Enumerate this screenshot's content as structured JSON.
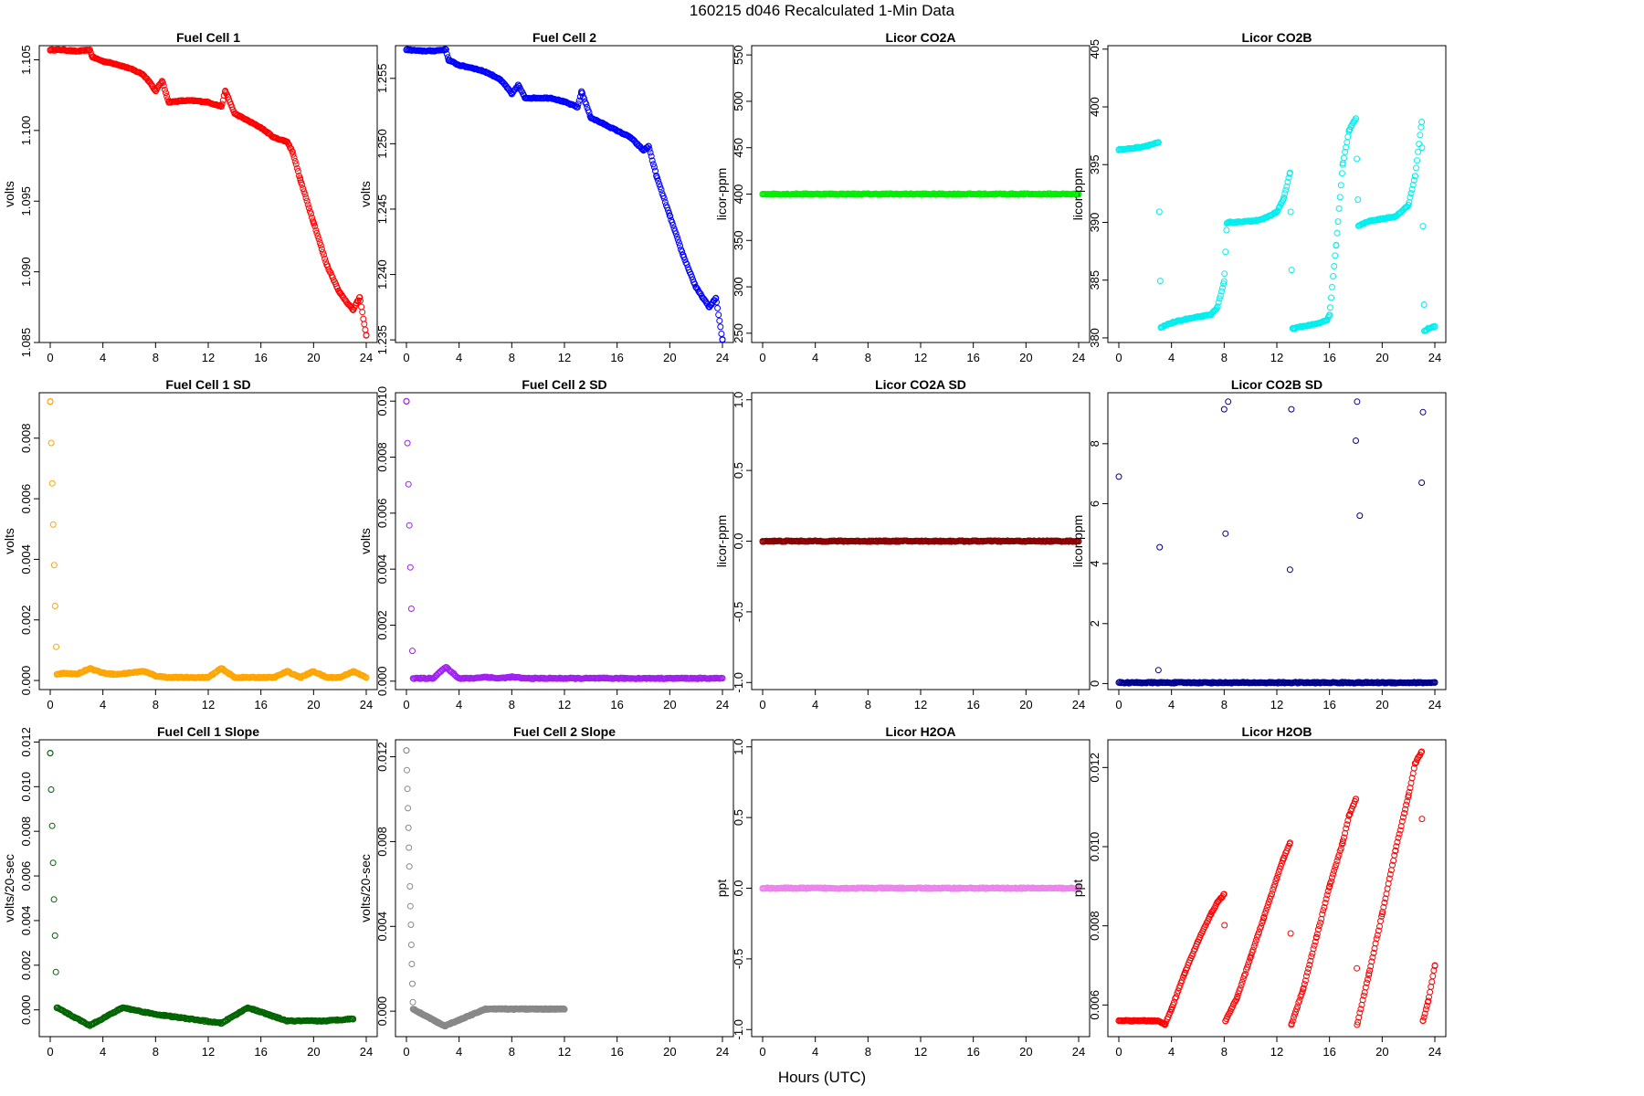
{
  "title": "160215   d046   Recalculated 1-Min Data",
  "xlabel": "Hours (UTC)",
  "chart_data": [
    {
      "type": "scatter",
      "title": "Fuel Cell 1",
      "ylabel": "volts",
      "color": "#ff0000",
      "xlim": [
        0,
        24
      ],
      "ylim": [
        1.085,
        1.106
      ],
      "yticks": [
        1.085,
        1.09,
        1.095,
        1.1,
        1.105
      ],
      "ytick_labels": [
        "1.085",
        "1.090",
        "1.095",
        "1.100",
        "1.105"
      ],
      "series": [
        {
          "x": [
            0,
            1,
            2,
            3,
            3.2,
            4,
            5,
            6,
            7,
            7.5,
            8,
            8.5,
            9,
            10,
            11,
            12,
            13,
            13.3,
            14,
            15,
            16,
            17,
            18,
            18.4,
            19,
            20,
            21,
            22,
            23,
            23.5,
            24
          ],
          "y": [
            1.1057,
            1.1057,
            1.1056,
            1.1057,
            1.1052,
            1.1049,
            1.1047,
            1.1044,
            1.104,
            1.1035,
            1.1028,
            1.1035,
            1.102,
            1.1021,
            1.1021,
            1.102,
            1.1017,
            1.1028,
            1.1012,
            1.1007,
            1.1002,
            1.0995,
            1.0992,
            1.0985,
            1.0965,
            1.0935,
            1.0905,
            1.0885,
            1.0873,
            1.0882,
            1.0855
          ]
        }
      ]
    },
    {
      "type": "scatter",
      "title": "Fuel Cell 2",
      "ylabel": "volts",
      "color": "#0000ff",
      "xlim": [
        0,
        24
      ],
      "ylim": [
        1.2348,
        1.2575
      ],
      "yticks": [
        1.235,
        1.24,
        1.245,
        1.25,
        1.255
      ],
      "ytick_labels": [
        "1.235",
        "1.240",
        "1.245",
        "1.250",
        "1.255"
      ],
      "series": [
        {
          "x": [
            0,
            1,
            2,
            3,
            3.2,
            4,
            5,
            6,
            7,
            7.5,
            8,
            8.5,
            9,
            10,
            11,
            12,
            13,
            13.3,
            14,
            15,
            16,
            17,
            18,
            18.4,
            19,
            20,
            21,
            22,
            23,
            23.5,
            24
          ],
          "y": [
            1.2572,
            1.2571,
            1.2571,
            1.2572,
            1.2564,
            1.256,
            1.2558,
            1.2555,
            1.255,
            1.2545,
            1.2538,
            1.2545,
            1.2535,
            1.2535,
            1.2535,
            1.2532,
            1.2528,
            1.254,
            1.252,
            1.2515,
            1.251,
            1.2505,
            1.2495,
            1.2498,
            1.2475,
            1.2445,
            1.2415,
            1.239,
            1.2375,
            1.2382,
            1.235
          ]
        }
      ]
    },
    {
      "type": "scatter",
      "title": "Licor CO2A",
      "ylabel": "licor-ppm",
      "color": "#00ee00",
      "xlim": [
        0,
        24
      ],
      "ylim": [
        240,
        560
      ],
      "yticks": [
        250,
        300,
        350,
        400,
        450,
        500,
        550
      ],
      "ytick_labels": [
        "250",
        "300",
        "350",
        "400",
        "450",
        "500",
        "550"
      ],
      "series": [
        {
          "x": [
            0,
            24
          ],
          "y": [
            400,
            400
          ]
        }
      ]
    },
    {
      "type": "scatter",
      "title": "Licor CO2B",
      "ylabel": "licor-ppm",
      "color": "#00eeee",
      "xlim": [
        0,
        24
      ],
      "ylim": [
        379.6,
        405.3
      ],
      "yticks": [
        380,
        385,
        390,
        395,
        400,
        405
      ],
      "ytick_labels": [
        "380",
        "385",
        "390",
        "395",
        "400",
        "405"
      ],
      "series": [
        {
          "x": [
            0,
            1,
            2,
            3,
            3.2,
            4,
            5,
            6,
            7,
            7.5,
            8,
            8.2,
            8.4,
            10,
            11,
            12,
            12.5,
            13,
            13.2,
            14,
            15,
            15.8,
            16,
            16.5,
            17,
            17.5,
            18,
            18.2,
            19,
            20,
            21,
            22,
            22.5,
            23,
            23.2,
            23.5,
            24
          ],
          "y": [
            396.3,
            396.4,
            396.6,
            396.9,
            380.9,
            381.3,
            381.6,
            381.8,
            382,
            382.7,
            384.9,
            389.9,
            390,
            390.1,
            390.3,
            390.9,
            392,
            394.3,
            380.8,
            381,
            381.2,
            381.5,
            382,
            388,
            395,
            398,
            399,
            389.7,
            390.1,
            390.3,
            390.5,
            391.5,
            394,
            398.7,
            380.6,
            380.8,
            381
          ]
        }
      ]
    },
    {
      "type": "scatter",
      "title": "Fuel Cell 1 SD",
      "ylabel": "volts",
      "color": "#ffa500",
      "xlim": [
        0,
        24
      ],
      "ylim": [
        -0.0003,
        0.0095
      ],
      "yticks": [
        0,
        0.002,
        0.004,
        0.006,
        0.008
      ],
      "ytick_labels": [
        "0.000",
        "0.002",
        "0.004",
        "0.006",
        "0.008"
      ],
      "series": [
        {
          "x": [
            0,
            0.5,
            1,
            2,
            3,
            4,
            5,
            6,
            7,
            7.5,
            8,
            9,
            10,
            11,
            12,
            13,
            14,
            15,
            16,
            17,
            18,
            19,
            20,
            21,
            22,
            23,
            24
          ],
          "y": [
            0.0092,
            0.0002,
            0.00025,
            0.0002,
            0.0004,
            0.00025,
            0.0002,
            0.00025,
            0.0003,
            0.00025,
            0.00015,
            0.0001,
            0.0001,
            0.0001,
            0.0001,
            0.0004,
            0.0001,
            0.0001,
            0.0001,
            0.0001,
            0.0003,
            0.0001,
            0.0003,
            0.0001,
            0.0001,
            0.0003,
            0.0001
          ]
        }
      ]
    },
    {
      "type": "scatter",
      "title": "Fuel Cell 2 SD",
      "ylabel": "volts",
      "color": "#a020f0",
      "xlim": [
        0,
        24
      ],
      "ylim": [
        -0.0003,
        0.0103
      ],
      "yticks": [
        0,
        0.002,
        0.004,
        0.006,
        0.008,
        0.01
      ],
      "ytick_labels": [
        "0.000",
        "0.002",
        "0.004",
        "0.006",
        "0.008",
        "0.010"
      ],
      "series": [
        {
          "x": [
            0,
            0.5,
            1,
            2,
            3,
            4,
            5,
            6,
            7,
            8,
            9,
            10,
            11,
            12,
            13,
            14,
            15,
            16,
            17,
            18,
            19,
            20,
            21,
            22,
            23,
            24
          ],
          "y": [
            0.01,
            0.0001,
            0.0001,
            0.0001,
            0.0005,
            0.0001,
            0.0001,
            0.00015,
            0.0001,
            0.00015,
            0.0001,
            0.0001,
            0.0001,
            0.0001,
            0.0001,
            0.0001,
            0.0001,
            0.0001,
            0.0001,
            0.0001,
            0.0001,
            0.0001,
            0.0001,
            0.0001,
            0.0001,
            0.0001
          ]
        }
      ]
    },
    {
      "type": "scatter",
      "title": "Licor CO2A SD",
      "ylabel": "licor-ppm",
      "color": "#8b0000",
      "xlim": [
        0,
        24
      ],
      "ylim": [
        -1.05,
        1.05
      ],
      "yticks": [
        -1,
        -0.5,
        0,
        0.5,
        1
      ],
      "ytick_labels": [
        "-1.0",
        "-0.5",
        "0.0",
        "0.5",
        "1.0"
      ],
      "series": [
        {
          "x": [
            0,
            24
          ],
          "y": [
            0,
            0
          ]
        }
      ]
    },
    {
      "type": "scatter",
      "title": "Licor CO2B SD",
      "ylabel": "licor-ppm",
      "color": "#00008b",
      "xlim": [
        0,
        24
      ],
      "ylim": [
        -0.2,
        9.7
      ],
      "yticks": [
        0,
        2,
        4,
        6,
        8
      ],
      "ytick_labels": [
        "0",
        "2",
        "4",
        "6",
        "8"
      ],
      "series": [
        {
          "x": [
            0,
            24
          ],
          "y": [
            0.03,
            0.03
          ]
        },
        {
          "x": [
            0,
            3,
            3.1,
            8,
            8.1,
            8.3,
            13,
            13.1,
            18,
            18.1,
            18.3,
            23,
            23.1
          ],
          "y": [
            6.9,
            0.45,
            4.55,
            9.15,
            5,
            9.4,
            3.8,
            9.15,
            8.1,
            9.4,
            5.6,
            6.7,
            9.05
          ]
        }
      ]
    },
    {
      "type": "scatter",
      "title": "Fuel Cell 1 Slope",
      "ylabel": "volts/20-sec",
      "color": "#006400",
      "xlim": [
        0,
        24
      ],
      "ylim": [
        -0.0012,
        0.0121
      ],
      "yticks": [
        0,
        0.002,
        0.004,
        0.006,
        0.008,
        0.01,
        0.012
      ],
      "ytick_labels": [
        "0.000",
        "0.002",
        "0.004",
        "0.006",
        "0.008",
        "0.010",
        "0.012"
      ],
      "series": [
        {
          "x": [
            0,
            0.5,
            3,
            5.5,
            8,
            13,
            15,
            18,
            20.8,
            23
          ],
          "y": [
            0.0115,
            0.0001,
            -0.0007,
            0.0001,
            -0.0002,
            -0.0006,
            0.0001,
            -0.0005,
            -0.0005,
            -0.0004
          ]
        }
      ]
    },
    {
      "type": "scatter",
      "title": "Fuel Cell 2 Slope",
      "ylabel": "volts/20-sec",
      "color": "#888888",
      "xlim": [
        0,
        24
      ],
      "ylim": [
        -0.0012,
        0.0128
      ],
      "yticks": [
        0,
        0.004,
        0.008,
        0.012
      ],
      "ytick_labels": [
        "0.000",
        "0.004",
        "0.008",
        "0.012"
      ],
      "series": [
        {
          "x": [
            0,
            0.5,
            2.9,
            6,
            12
          ],
          "y": [
            0.0123,
            0.0001,
            -0.0007,
            0.0001,
            0.0001
          ]
        }
      ]
    },
    {
      "type": "scatter",
      "title": "Licor H2OA",
      "ylabel": "ppt",
      "color": "#ee82ee",
      "xlim": [
        0,
        24
      ],
      "ylim": [
        -1.05,
        1.05
      ],
      "yticks": [
        -1,
        -0.5,
        0,
        0.5,
        1
      ],
      "ytick_labels": [
        "-1.0",
        "-0.5",
        "0.0",
        "0.5",
        "1.0"
      ],
      "series": [
        {
          "x": [
            0,
            24
          ],
          "y": [
            0,
            0
          ]
        }
      ]
    },
    {
      "type": "scatter",
      "title": "Licor H2OB",
      "ylabel": "ppt",
      "color": "#ff0000",
      "xlim": [
        0,
        24
      ],
      "ylim": [
        0.0052,
        0.0127
      ],
      "yticks": [
        0.006,
        0.008,
        0.01,
        0.012
      ],
      "ytick_labels": [
        "0.006",
        "0.008",
        "0.010",
        "0.012"
      ],
      "series": [
        {
          "x": [
            0,
            1,
            2,
            3,
            3.5,
            4,
            5,
            6,
            7,
            7.5,
            8,
            8.1,
            9,
            10,
            11,
            12,
            12.5,
            13,
            13.1,
            14,
            15,
            16,
            17,
            17.5,
            18,
            18.1,
            19,
            20,
            21,
            22,
            22.5,
            23,
            23.1,
            23.5,
            24
          ],
          "y": [
            0.0056,
            0.0056,
            0.0056,
            0.0056,
            0.0055,
            0.0059,
            0.0068,
            0.0076,
            0.0083,
            0.0086,
            0.0088,
            0.0056,
            0.0062,
            0.0072,
            0.0082,
            0.0092,
            0.0097,
            0.0101,
            0.0055,
            0.0064,
            0.0077,
            0.009,
            0.0101,
            0.0108,
            0.0112,
            0.0055,
            0.0068,
            0.0083,
            0.0099,
            0.0113,
            0.0121,
            0.0124,
            0.0056,
            0.0061,
            0.007
          ]
        }
      ]
    }
  ]
}
